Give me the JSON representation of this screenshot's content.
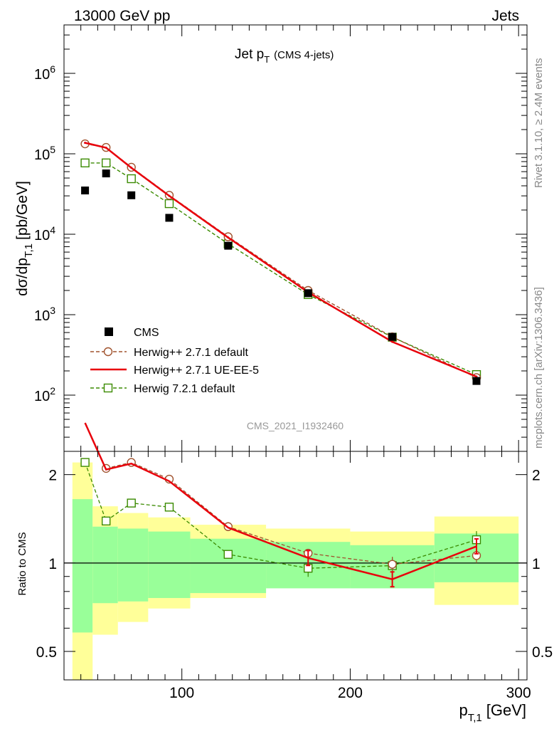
{
  "header": {
    "left": "13000 GeV pp",
    "right": "Jets"
  },
  "side_labels": {
    "rivet": "Rivet 3.1.10, ≥ 2.4M events",
    "mcplots": "mcplots.cern.ch [arXiv:1306.3436]"
  },
  "colors": {
    "cms": "#000000",
    "herwig_pp_default": "#a0522d",
    "herwig_pp_ueee5": "#e8000b",
    "herwig_721": "#3a8a00",
    "band_inner": "#99ff99",
    "band_outer": "#ffff99"
  },
  "chart_data": [
    {
      "type": "line",
      "title_main": "Jet p",
      "title_sub": "T",
      "title_extra": "(CMS 4-jets)",
      "watermark": "CMS_2021_I1932460",
      "ylabel": {
        "main": "dσ/dp",
        "sub": "T,1",
        "unit": "[pb/GeV]"
      },
      "yscale": "log",
      "ylim": [
        20,
        4000000
      ],
      "xlim": [
        30,
        305
      ],
      "ytick_labels": [
        {
          "base": "10",
          "exp": "2",
          "value": 100
        },
        {
          "base": "10",
          "exp": "3",
          "value": 1000
        },
        {
          "base": "10",
          "exp": "4",
          "value": 10000
        },
        {
          "base": "10",
          "exp": "5",
          "value": 100000
        },
        {
          "base": "10",
          "exp": "6",
          "value": 1000000
        }
      ],
      "legend_position": "bottom-left",
      "series": [
        {
          "name": "CMS",
          "style": "marker-square",
          "x": [
            42.5,
            55,
            70,
            92.5,
            127.5,
            175,
            225,
            275
          ],
          "y": [
            35000,
            57000,
            30500,
            16000,
            7200,
            1850,
            530,
            150
          ]
        },
        {
          "name": "Herwig++ 2.7.1 default",
          "style": "dashed-circle",
          "x": [
            42.5,
            55,
            70,
            92.5,
            127.5,
            175,
            225,
            275
          ],
          "y": [
            133000,
            120000,
            68000,
            30500,
            9300,
            2000,
            530,
            165
          ]
        },
        {
          "name": "Herwig++ 2.7.1 UE-EE-5",
          "style": "solid",
          "x": [
            42.5,
            55,
            70,
            92.5,
            127.5,
            175,
            225,
            275
          ],
          "y": [
            137000,
            119000,
            67000,
            30000,
            9100,
            1900,
            460,
            170
          ]
        },
        {
          "name": "Herwig 7.2.1 default",
          "style": "dashed-square",
          "x": [
            42.5,
            55,
            70,
            92.5,
            127.5,
            175,
            225,
            275
          ],
          "y": [
            77000,
            77000,
            49000,
            24000,
            7600,
            1780,
            525,
            180
          ]
        }
      ]
    },
    {
      "type": "line",
      "ylabel": "Ratio to CMS",
      "xlabel": {
        "main": "p",
        "sub": "T,1",
        "unit": "[GeV]"
      },
      "yscale": "log",
      "ylim": [
        0.4,
        2.4
      ],
      "xlim": [
        30,
        305
      ],
      "ytick_labels": [
        "0.5",
        "1",
        "2"
      ],
      "xtick_labels": [
        "100",
        "200",
        "300"
      ],
      "bands": {
        "edges": [
          35,
          47,
          62,
          80,
          105,
          150,
          200,
          250,
          300
        ],
        "inner_low": [
          0.58,
          0.73,
          0.74,
          0.76,
          0.79,
          0.82,
          0.82,
          0.86
        ],
        "inner_high": [
          1.65,
          1.33,
          1.31,
          1.28,
          1.21,
          1.18,
          1.15,
          1.26
        ],
        "outer_low": [
          0.3,
          0.57,
          0.63,
          0.7,
          0.76,
          0.83,
          0.84,
          0.72
        ],
        "outer_high": [
          2.2,
          1.56,
          1.48,
          1.43,
          1.35,
          1.31,
          1.28,
          1.44
        ]
      },
      "series": [
        {
          "name": "Herwig++ 2.7.1 default",
          "x": [
            55,
            70,
            92.5,
            127.5,
            175,
            225,
            275
          ],
          "y": [
            2.1,
            2.2,
            1.93,
            1.33,
            1.08,
            0.99,
            1.06
          ]
        },
        {
          "name": "Herwig++ 2.7.1 UE-EE-5",
          "x": [
            42.5,
            55,
            70,
            92.5,
            127.5,
            175,
            225,
            275
          ],
          "y": [
            3.0,
            2.08,
            2.18,
            1.9,
            1.32,
            1.04,
            0.88,
            1.14
          ]
        },
        {
          "name": "Herwig 7.2.1 default",
          "x": [
            42.5,
            55,
            70,
            92.5,
            127.5,
            175,
            225,
            275
          ],
          "y": [
            2.2,
            1.39,
            1.6,
            1.55,
            1.07,
            0.96,
            0.98,
            1.2
          ]
        }
      ]
    }
  ]
}
